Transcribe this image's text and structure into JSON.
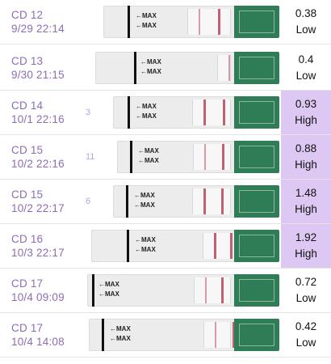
{
  "rows": [
    {
      "cd": "CD 12",
      "datetime": "9/29 22:14",
      "value": "0.38",
      "level": "Low",
      "high": false,
      "partial": ""
    },
    {
      "cd": "CD 13",
      "datetime": "9/30 21:15",
      "value": "0.4",
      "level": "Low",
      "high": false,
      "partial": ""
    },
    {
      "cd": "CD 14",
      "datetime": "10/1 22:16",
      "value": "0.93",
      "level": "High",
      "high": true,
      "partial": "3"
    },
    {
      "cd": "CD 15",
      "datetime": "10/2 22:16",
      "value": "0.88",
      "level": "High",
      "high": true,
      "partial": "11"
    },
    {
      "cd": "CD 15",
      "datetime": "10/2 22:17",
      "value": "1.48",
      "level": "High",
      "high": true,
      "partial": "6"
    },
    {
      "cd": "CD 16",
      "datetime": "10/3 22:17",
      "value": "1.92",
      "level": "High",
      "high": true,
      "partial": ""
    },
    {
      "cd": "CD 17",
      "datetime": "10/4 09:09",
      "value": "0.72",
      "level": "Low",
      "high": false,
      "partial": ""
    },
    {
      "cd": "CD 17",
      "datetime": "10/4 14:08",
      "value": "0.42",
      "level": "Low",
      "high": false,
      "partial": ""
    }
  ],
  "strip_marker_text": "MAX",
  "colors": {
    "label": "#8f6bb5",
    "high_bg": "#dcc8f2",
    "strip_green": "#2f7d56",
    "test_line": "#c06070"
  }
}
